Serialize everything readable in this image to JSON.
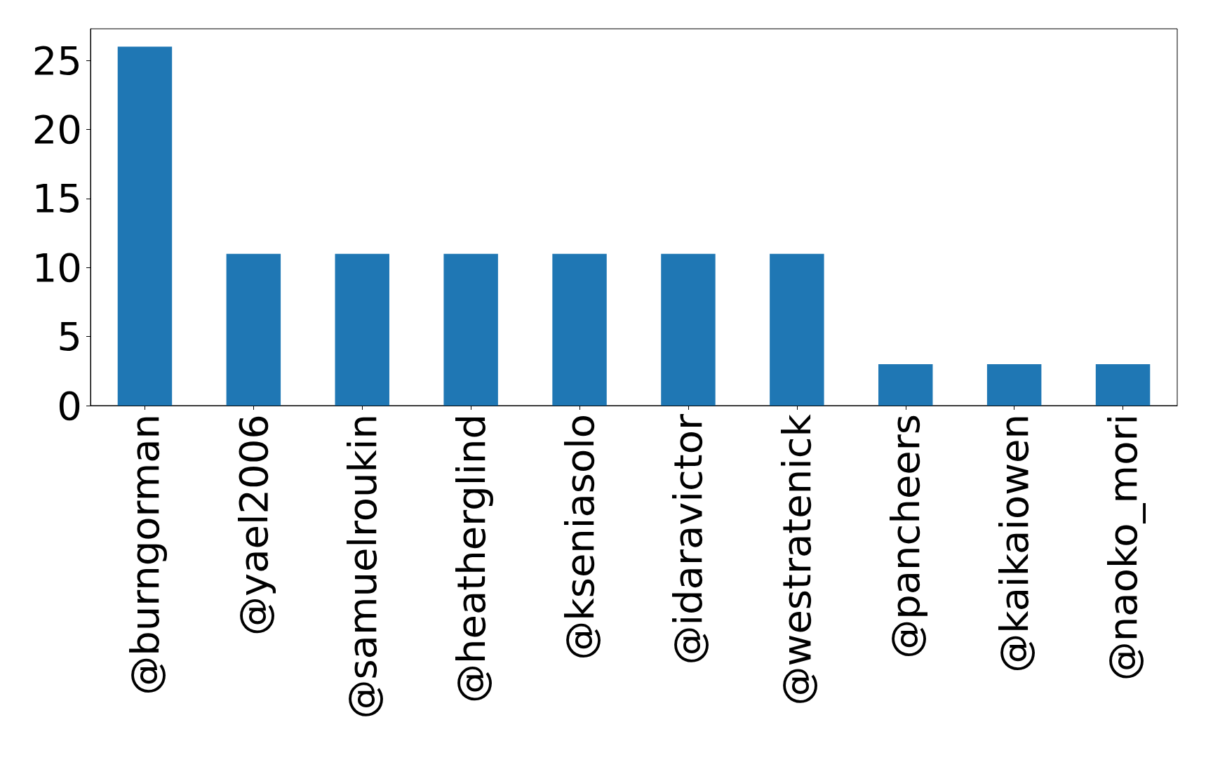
{
  "chart_data": {
    "type": "bar",
    "categories": [
      "@burngorman",
      "@yael2006",
      "@samuelroukin",
      "@heatherglind",
      "@kseniasolo",
      "@idaravictor",
      "@westratenick",
      "@pancheers",
      "@kaikaiowen",
      "@naoko_mori"
    ],
    "values": [
      26,
      11,
      11,
      11,
      11,
      11,
      11,
      3,
      3,
      3
    ],
    "color": "#1f77b4",
    "ylim": [
      0,
      27.3
    ],
    "yticks": [
      0,
      5,
      10,
      15,
      20,
      25
    ],
    "grid": false
  }
}
